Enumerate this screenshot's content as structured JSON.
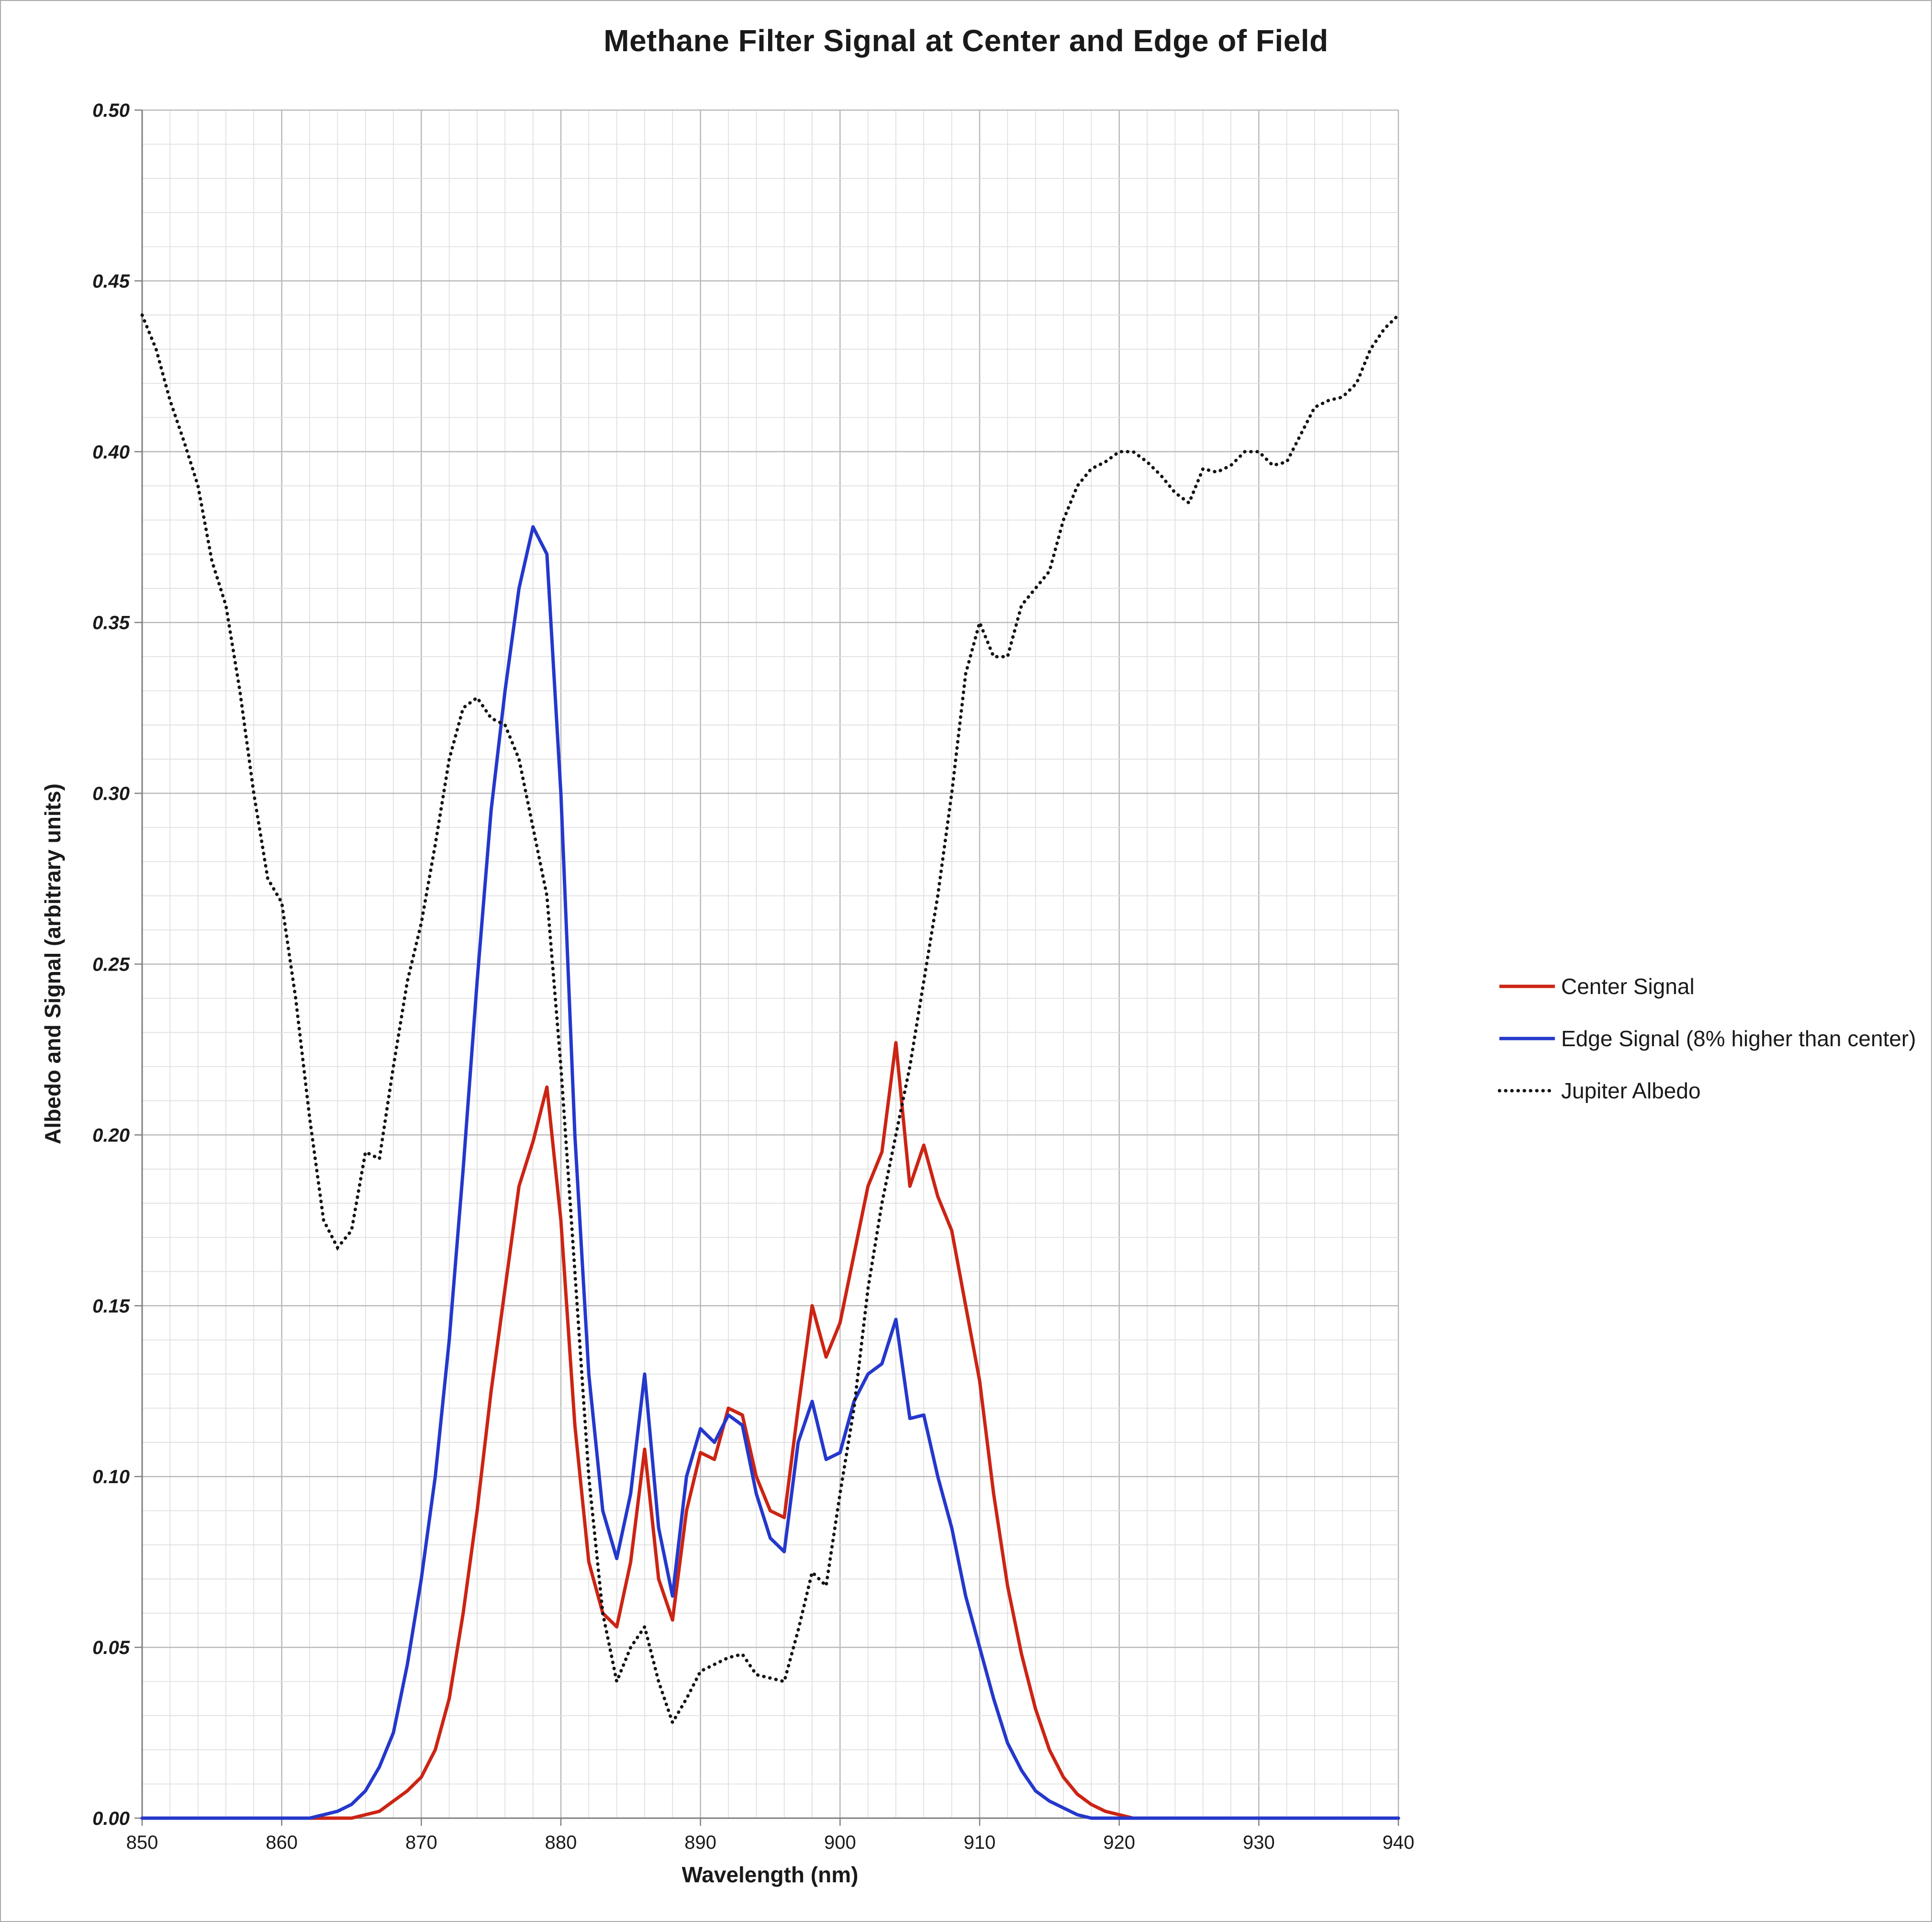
{
  "chart_data": {
    "type": "line",
    "title": "Methane Filter Signal at Center and Edge of Field",
    "xlabel": "Wavelength (nm)",
    "ylabel": "Albedo and Signal (arbitrary units)",
    "xlim": [
      850,
      940
    ],
    "ylim": [
      0,
      0.5
    ],
    "x_major": 10,
    "x_minor": 2,
    "y_major": 0.05,
    "y_minor": 0.01,
    "grid": true,
    "legend_position": "right",
    "x": [
      850,
      851,
      852,
      853,
      854,
      855,
      856,
      857,
      858,
      859,
      860,
      861,
      862,
      863,
      864,
      865,
      866,
      867,
      868,
      869,
      870,
      871,
      872,
      873,
      874,
      875,
      876,
      877,
      878,
      879,
      880,
      881,
      882,
      883,
      884,
      885,
      886,
      887,
      888,
      889,
      890,
      891,
      892,
      893,
      894,
      895,
      896,
      897,
      898,
      899,
      900,
      901,
      902,
      903,
      904,
      905,
      906,
      907,
      908,
      909,
      910,
      911,
      912,
      913,
      914,
      915,
      916,
      917,
      918,
      919,
      920,
      921,
      922,
      923,
      924,
      925,
      926,
      927,
      928,
      929,
      930,
      931,
      932,
      933,
      934,
      935,
      936,
      937,
      938,
      939,
      940
    ],
    "series": [
      {
        "name": "Center Signal",
        "color": "#cc2414",
        "style": "solid",
        "values": [
          0,
          0,
          0,
          0,
          0,
          0,
          0,
          0,
          0,
          0,
          0,
          0,
          0,
          0,
          0,
          0,
          0.001,
          0.002,
          0.005,
          0.008,
          0.012,
          0.02,
          0.035,
          0.06,
          0.09,
          0.125,
          0.155,
          0.185,
          0.198,
          0.214,
          0.175,
          0.115,
          0.075,
          0.06,
          0.056,
          0.075,
          0.108,
          0.07,
          0.058,
          0.09,
          0.107,
          0.105,
          0.12,
          0.118,
          0.1,
          0.09,
          0.088,
          0.12,
          0.15,
          0.135,
          0.145,
          0.165,
          0.185,
          0.195,
          0.227,
          0.185,
          0.197,
          0.182,
          0.172,
          0.15,
          0.128,
          0.095,
          0.068,
          0.048,
          0.032,
          0.02,
          0.012,
          0.007,
          0.004,
          0.002,
          0.001,
          0,
          0,
          0,
          0,
          0,
          0,
          0,
          0,
          0,
          0,
          0,
          0,
          0,
          0,
          0,
          0,
          0,
          0,
          0,
          0
        ]
      },
      {
        "name": "Edge Signal (8% higher than center)",
        "color": "#2438cc",
        "style": "solid",
        "values": [
          0,
          0,
          0,
          0,
          0,
          0,
          0,
          0,
          0,
          0,
          0,
          0,
          0,
          0.001,
          0.002,
          0.004,
          0.008,
          0.015,
          0.025,
          0.045,
          0.07,
          0.1,
          0.14,
          0.19,
          0.245,
          0.295,
          0.33,
          0.36,
          0.378,
          0.37,
          0.3,
          0.2,
          0.13,
          0.09,
          0.076,
          0.095,
          0.13,
          0.085,
          0.065,
          0.1,
          0.114,
          0.11,
          0.118,
          0.115,
          0.095,
          0.082,
          0.078,
          0.11,
          0.122,
          0.105,
          0.107,
          0.122,
          0.13,
          0.133,
          0.146,
          0.117,
          0.118,
          0.1,
          0.085,
          0.065,
          0.05,
          0.035,
          0.022,
          0.014,
          0.008,
          0.005,
          0.003,
          0.001,
          0,
          0,
          0,
          0,
          0,
          0,
          0,
          0,
          0,
          0,
          0,
          0,
          0,
          0,
          0,
          0,
          0,
          0,
          0,
          0,
          0,
          0,
          0
        ]
      },
      {
        "name": "Jupiter Albedo",
        "color": "#141414",
        "style": "dotted",
        "values": [
          0.44,
          0.43,
          0.415,
          0.403,
          0.39,
          0.368,
          0.355,
          0.33,
          0.3,
          0.275,
          0.268,
          0.24,
          0.205,
          0.175,
          0.167,
          0.172,
          0.195,
          0.193,
          0.22,
          0.245,
          0.262,
          0.285,
          0.31,
          0.325,
          0.328,
          0.322,
          0.32,
          0.31,
          0.29,
          0.27,
          0.22,
          0.16,
          0.1,
          0.06,
          0.04,
          0.05,
          0.056,
          0.04,
          0.028,
          0.035,
          0.043,
          0.045,
          0.047,
          0.048,
          0.042,
          0.041,
          0.04,
          0.055,
          0.072,
          0.068,
          0.095,
          0.12,
          0.155,
          0.18,
          0.2,
          0.22,
          0.245,
          0.27,
          0.3,
          0.335,
          0.35,
          0.34,
          0.34,
          0.355,
          0.36,
          0.365,
          0.38,
          0.39,
          0.395,
          0.397,
          0.4,
          0.4,
          0.397,
          0.393,
          0.388,
          0.385,
          0.395,
          0.394,
          0.396,
          0.4,
          0.4,
          0.396,
          0.397,
          0.405,
          0.413,
          0.415,
          0.416,
          0.42,
          0.43,
          0.436,
          0.44
        ]
      }
    ]
  },
  "colors": {
    "grid_major": "#b9b9b9",
    "grid_minor": "#e0e0e0",
    "axis": "#7f7f7f",
    "text": "#1a1a1a"
  }
}
